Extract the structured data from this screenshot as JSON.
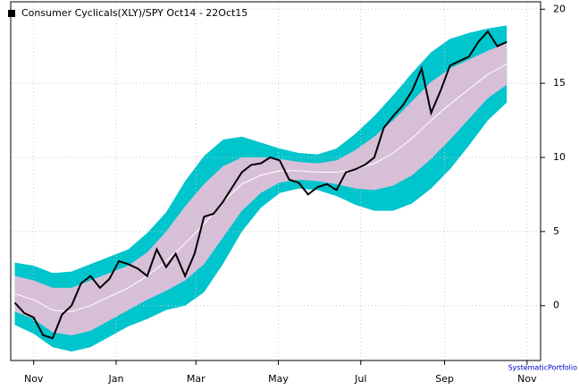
{
  "chart_data": {
    "type": "band-line",
    "legend_label": "Consumer Cyclicals(XLY)/SPY Oct14 - 22Oct15",
    "credit": "SystematicPortfolio",
    "xlim": [
      -17,
      375
    ],
    "xticks": [
      {
        "value": 0,
        "label": "Nov"
      },
      {
        "value": 61,
        "label": "Jan"
      },
      {
        "value": 120,
        "label": "Mar"
      },
      {
        "value": 181,
        "label": "May"
      },
      {
        "value": 242,
        "label": "Jul"
      },
      {
        "value": 304,
        "label": "Sep"
      },
      {
        "value": 365,
        "label": "Nov"
      }
    ],
    "ylim": [
      -3.7,
      20.5
    ],
    "yticks": [
      0,
      5,
      10,
      15,
      20
    ],
    "grid": true,
    "band_x": [
      -14,
      0,
      14,
      28,
      42,
      56,
      70,
      84,
      98,
      112,
      126,
      140,
      154,
      168,
      182,
      196,
      210,
      224,
      238,
      252,
      266,
      280,
      294,
      308,
      322,
      336,
      350
    ],
    "bands": [
      {
        "color": "#00c5cd",
        "upper": [
          2.9,
          2.7,
          2.2,
          2.3,
          2.8,
          3.3,
          3.8,
          4.9,
          6.3,
          8.4,
          10.1,
          11.2,
          11.4,
          11.0,
          10.6,
          10.3,
          10.2,
          10.6,
          11.6,
          12.8,
          14.2,
          15.7,
          17.1,
          18.0,
          18.4,
          18.7,
          18.9
        ],
        "lower": [
          -1.3,
          -1.9,
          -2.8,
          -3.1,
          -2.8,
          -2.1,
          -1.4,
          -0.9,
          -0.3,
          0,
          0.9,
          2.8,
          5.0,
          6.6,
          7.6,
          7.9,
          7.8,
          7.4,
          6.8,
          6.4,
          6.4,
          6.9,
          7.9,
          9.2,
          10.8,
          12.5,
          13.7
        ]
      },
      {
        "color": "#d8bfd8",
        "upper": [
          2.0,
          1.7,
          1.2,
          1.2,
          1.7,
          2.2,
          2.7,
          3.6,
          5.0,
          6.7,
          8.2,
          9.4,
          10.0,
          10.0,
          9.9,
          9.7,
          9.6,
          9.8,
          10.5,
          11.4,
          12.5,
          13.8,
          15.1,
          16.0,
          16.6,
          17.2,
          17.7
        ],
        "lower": [
          -0.4,
          -0.9,
          -1.8,
          -2.0,
          -1.7,
          -1.0,
          -0.3,
          0.4,
          1.0,
          1.7,
          2.8,
          4.6,
          6.4,
          7.6,
          8.3,
          8.5,
          8.4,
          8.2,
          7.9,
          7.8,
          8.1,
          8.8,
          9.9,
          11.2,
          12.6,
          14.0,
          14.9
        ]
      }
    ],
    "mean": {
      "color": "#ffffff",
      "values": [
        0.8,
        0.4,
        -0.3,
        -0.4,
        0,
        0.6,
        1.2,
        2,
        3,
        4.2,
        5.5,
        7,
        8.2,
        8.8,
        9.1,
        9.1,
        9,
        9,
        9.2,
        9.6,
        10.3,
        11.3,
        12.5,
        13.6,
        14.6,
        15.6,
        16.3
      ]
    },
    "series": [
      {
        "color": "#000000",
        "x": [
          -14,
          -7,
          0,
          7,
          14,
          21,
          28,
          35,
          42,
          49,
          56,
          63,
          70,
          77,
          84,
          91,
          98,
          105,
          112,
          119,
          126,
          133,
          140,
          147,
          154,
          161,
          168,
          175,
          182,
          189,
          196,
          203,
          210,
          217,
          224,
          231,
          238,
          245,
          252,
          259,
          266,
          273,
          280,
          287,
          294,
          301,
          308,
          315,
          322,
          329,
          336,
          343,
          350
        ],
        "values": [
          0.2,
          -0.5,
          -0.8,
          -2.0,
          -2.2,
          -0.6,
          0,
          1.5,
          2.0,
          1.2,
          1.8,
          3.0,
          2.8,
          2.5,
          2.0,
          3.8,
          2.6,
          3.5,
          2.0,
          3.5,
          6.0,
          6.2,
          7.0,
          8.0,
          9.0,
          9.5,
          9.6,
          10.0,
          9.8,
          8.5,
          8.3,
          7.5,
          8.0,
          8.2,
          7.8,
          9.0,
          9.2,
          9.5,
          10.0,
          12.0,
          12.8,
          13.5,
          14.5,
          16.0,
          13.0,
          14.5,
          16.2,
          16.5,
          16.8,
          17.8,
          18.5,
          17.5,
          17.8
        ]
      }
    ]
  }
}
